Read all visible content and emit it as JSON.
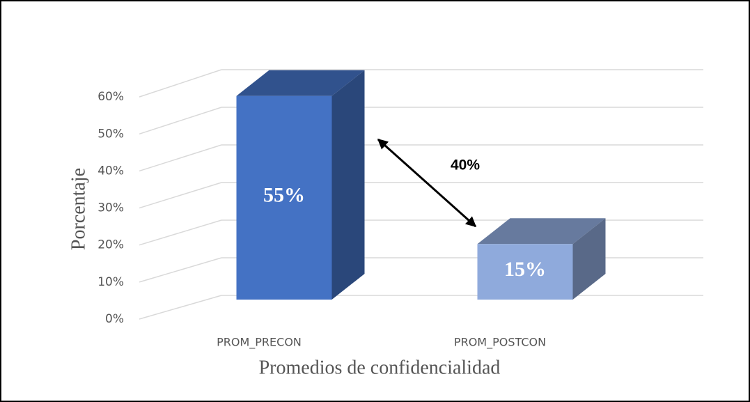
{
  "chart_data": {
    "type": "bar3d",
    "categories": [
      "PROM_PRECON",
      "PROM_POSTCON"
    ],
    "values": [
      55,
      15
    ],
    "value_labels": [
      "55%",
      "15%"
    ],
    "colors": [
      "#4472c4",
      "#8faadc"
    ],
    "ylim": [
      0,
      70
    ],
    "yticks": [
      {
        "value": 0,
        "label": "0%"
      },
      {
        "value": 10,
        "label": "10%"
      },
      {
        "value": 20,
        "label": "20%"
      },
      {
        "value": 30,
        "label": "30%"
      },
      {
        "value": 40,
        "label": "40%"
      },
      {
        "value": 50,
        "label": "50%"
      },
      {
        "value": 60,
        "label": "60%"
      }
    ],
    "grid": true,
    "y_label": "Porcentaje",
    "x_label": "Promedios de confidencialidad",
    "annotation": "40%"
  }
}
